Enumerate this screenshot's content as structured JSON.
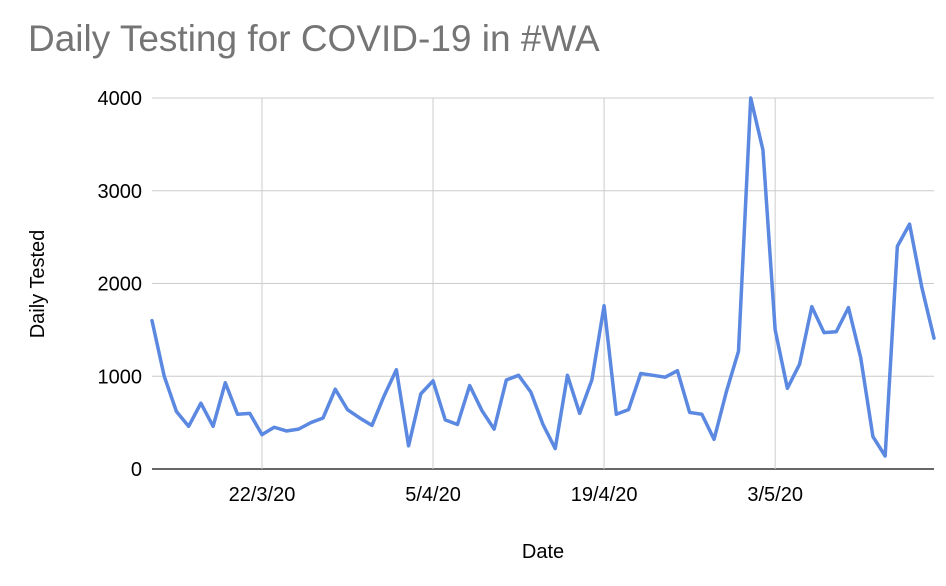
{
  "chart_data": {
    "type": "line",
    "title": "Daily Testing for COVID-19 in #WA",
    "xlabel": "Date",
    "ylabel": "Daily Tested",
    "ylim": [
      0,
      4000
    ],
    "yticks": [
      0,
      1000,
      2000,
      3000,
      4000
    ],
    "xticks": [
      "22/3/20",
      "5/4/20",
      "19/4/20",
      "3/5/20"
    ],
    "x_start": "2020-03-13",
    "x_end": "2020-05-16",
    "grid": true,
    "legend": "none",
    "line_color": "#5b88e0",
    "values": [
      1600,
      1000,
      620,
      460,
      710,
      460,
      930,
      590,
      600,
      370,
      450,
      410,
      430,
      500,
      550,
      860,
      640,
      550,
      470,
      790,
      1070,
      250,
      810,
      950,
      530,
      480,
      900,
      630,
      430,
      960,
      1010,
      830,
      480,
      220,
      1010,
      600,
      960,
      1760,
      590,
      640,
      1030,
      1010,
      990,
      1060,
      610,
      590,
      320,
      830,
      1270,
      4000,
      3440,
      1500,
      870,
      1130,
      1750,
      1470,
      1480,
      1740,
      1200,
      350,
      140,
      2400,
      2640,
      1960,
      1410
    ]
  }
}
